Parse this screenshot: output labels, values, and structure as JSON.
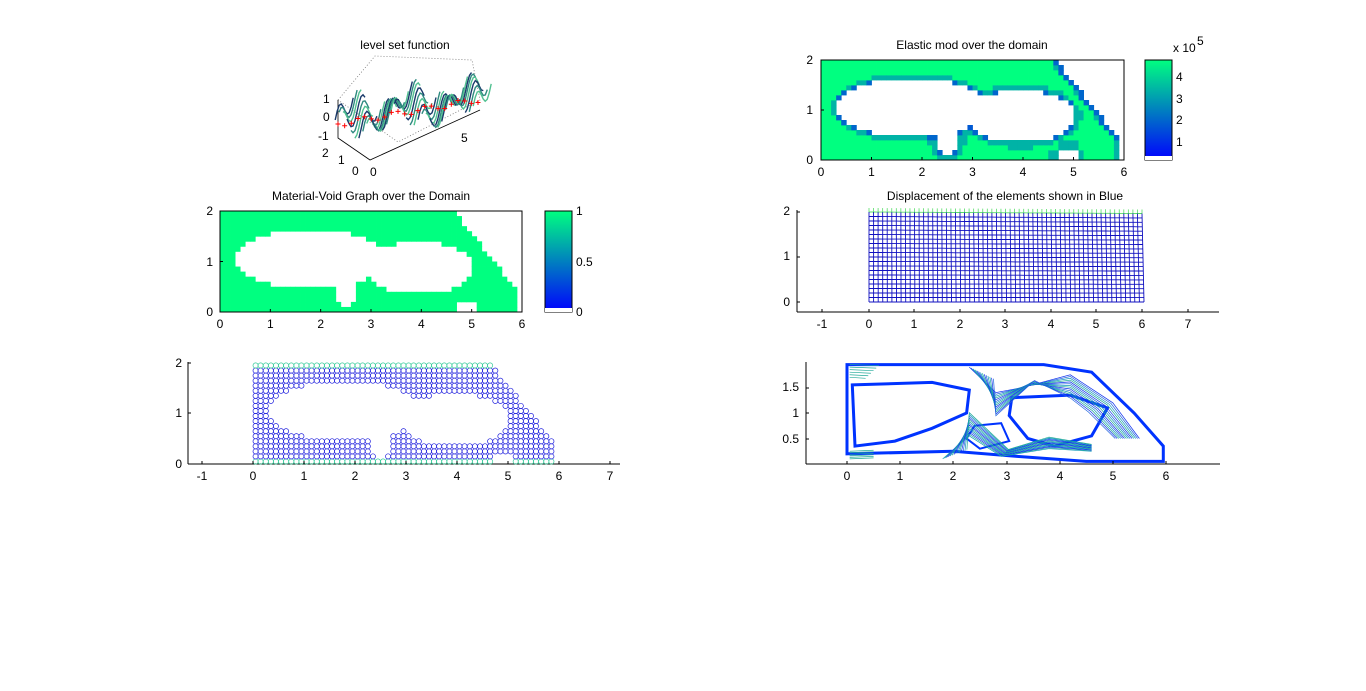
{
  "chart_data": [
    {
      "id": "levelset",
      "type": "surface",
      "title": "level set function",
      "z_ticks": [
        "1",
        "0",
        "-1"
      ],
      "y_ticks": [
        "2",
        "1",
        "0"
      ],
      "x_ticks": [
        "0",
        "5"
      ],
      "surface_palette": [
        "#0000ff",
        "#00ff80"
      ],
      "marker_color": "#ff0000"
    },
    {
      "id": "elastic",
      "type": "heatmap",
      "title": "Elastic mod over the domain",
      "xlim": [
        0,
        6
      ],
      "ylim": [
        0,
        2
      ],
      "x_ticks": [
        "0",
        "1",
        "2",
        "3",
        "4",
        "5",
        "6"
      ],
      "y_ticks": [
        "0",
        "1",
        "2"
      ],
      "colorbar": {
        "exponent_label": "x 10",
        "exponent": "5",
        "ticks": [
          "1",
          "2",
          "3",
          "4"
        ],
        "colors": [
          "#0000ff",
          "#00ff80"
        ]
      },
      "cells": {
        "nx": 60,
        "ny": 20
      }
    },
    {
      "id": "material",
      "type": "heatmap",
      "title": "Material-Void Graph over the Domain",
      "xlim": [
        0,
        6
      ],
      "ylim": [
        0,
        2
      ],
      "x_ticks": [
        "0",
        "1",
        "2",
        "3",
        "4",
        "5",
        "6"
      ],
      "y_ticks": [
        "0",
        "1",
        "2"
      ],
      "colorbar": {
        "ticks": [
          "0",
          "0.5",
          "1"
        ],
        "colors": [
          "#0000ff",
          "#00ff80"
        ]
      },
      "cells": {
        "nx": 60,
        "ny": 20
      }
    },
    {
      "id": "displacement",
      "type": "mesh",
      "title": "Displacement of the elements shown in Blue",
      "xlim": [
        -1.6,
        7.7
      ],
      "ylim": [
        -0.2,
        2
      ],
      "x_ticks": [
        "-1",
        "0",
        "1",
        "2",
        "3",
        "4",
        "5",
        "6",
        "7"
      ],
      "y_ticks": [
        "0",
        "1",
        "2"
      ],
      "mesh_color": "#0000cc",
      "edge_color": "#00ff80",
      "mesh": {
        "nx": 60,
        "ny": 20
      }
    },
    {
      "id": "circles",
      "type": "scatter",
      "title": "",
      "xlim": [
        -1.6,
        7.7
      ],
      "ylim": [
        0,
        2
      ],
      "x_ticks": [
        "-1",
        "0",
        "1",
        "2",
        "3",
        "4",
        "5",
        "6",
        "7"
      ],
      "y_ticks": [
        "0",
        "1",
        "2"
      ],
      "marker": "circle",
      "marker_color": "#0000ff"
    },
    {
      "id": "contour",
      "type": "contour",
      "title": "",
      "xlim": [
        -0.8,
        7
      ],
      "ylim": [
        0,
        2
      ],
      "x_ticks": [
        "0",
        "1",
        "2",
        "3",
        "4",
        "5",
        "6"
      ],
      "y_ticks": [
        "0.5",
        "1",
        "1.5"
      ],
      "line_colors": [
        "#0000ff",
        "#00aaff",
        "#00cc88"
      ]
    }
  ]
}
